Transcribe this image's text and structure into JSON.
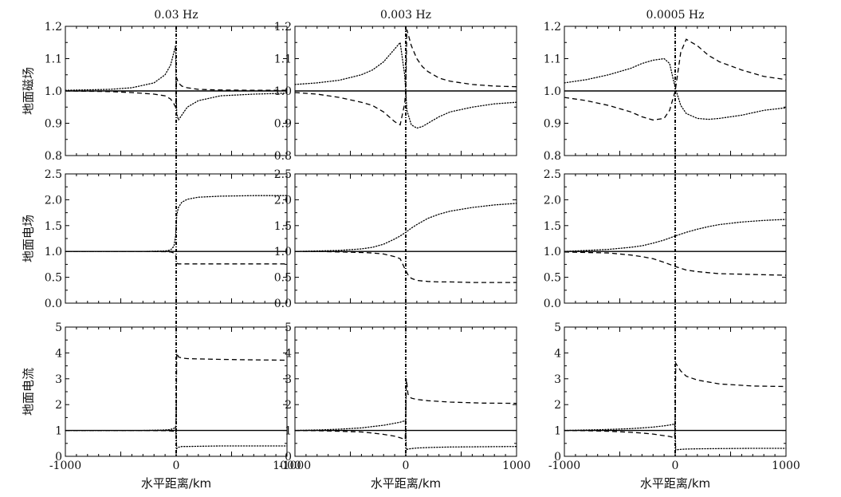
{
  "chart_data": {
    "type": "line",
    "layout": "3x3 grid of line panels",
    "columns": [
      "0.03 Hz",
      "0.003 Hz",
      "0.0005 Hz"
    ],
    "rows": [
      "地面磁场",
      "地面电场",
      "地面电流"
    ],
    "xlabel": "水平距离/km",
    "xlim": [
      -1000,
      1000
    ],
    "xticks": [
      -1000,
      0,
      1000
    ],
    "row_axes": [
      {
        "ylim": [
          0.8,
          1.2
        ],
        "yticks": [
          "0.8",
          "0.9",
          "1.0",
          "1.1",
          "1.2"
        ]
      },
      {
        "ylim": [
          0.0,
          2.5
        ],
        "yticks": [
          "0.0",
          "0.5",
          "1.0",
          "1.5",
          "2.0",
          "2.5"
        ]
      },
      {
        "ylim": [
          0,
          5
        ],
        "yticks": [
          "0",
          "1",
          "2",
          "3",
          "4",
          "5"
        ]
      }
    ],
    "line_styles": {
      "reference": "solid",
      "dotted_curve": "dotted",
      "dashed_curve": "dashed"
    },
    "panels": [
      {
        "row": 0,
        "col": 0,
        "reference": 1.0,
        "dotted": {
          "x": [
            -1000,
            -600,
            -400,
            -200,
            -100,
            -50,
            -20,
            -5,
            0,
            5,
            20,
            50,
            100,
            200,
            400,
            700,
            1000
          ],
          "y": [
            1.002,
            1.005,
            1.01,
            1.025,
            1.05,
            1.08,
            1.12,
            1.14,
            1.0,
            0.93,
            0.91,
            0.925,
            0.95,
            0.97,
            0.985,
            0.99,
            0.993
          ]
        },
        "dashed": {
          "x": [
            -1000,
            -600,
            -400,
            -200,
            -100,
            -50,
            -20,
            -5,
            0,
            5,
            20,
            50,
            100,
            200,
            400,
            700,
            1000
          ],
          "y": [
            1.0,
            0.998,
            0.995,
            0.99,
            0.985,
            0.975,
            0.96,
            0.95,
            1.0,
            1.04,
            1.025,
            1.015,
            1.01,
            1.005,
            1.003,
            1.002,
            1.002
          ]
        }
      },
      {
        "row": 0,
        "col": 1,
        "reference": 1.0,
        "dotted": {
          "x": [
            -1000,
            -800,
            -600,
            -400,
            -300,
            -200,
            -100,
            -50,
            -10,
            0,
            10,
            50,
            100,
            150,
            200,
            300,
            400,
            600,
            800,
            1000
          ],
          "y": [
            1.02,
            1.025,
            1.033,
            1.05,
            1.065,
            1.09,
            1.13,
            1.15,
            1.05,
            1.0,
            0.94,
            0.895,
            0.885,
            0.89,
            0.9,
            0.92,
            0.935,
            0.95,
            0.96,
            0.965
          ]
        },
        "dashed": {
          "x": [
            -1000,
            -800,
            -600,
            -400,
            -300,
            -200,
            -100,
            -50,
            -10,
            0,
            10,
            50,
            100,
            150,
            200,
            300,
            400,
            600,
            800,
            1000
          ],
          "y": [
            0.995,
            0.99,
            0.98,
            0.965,
            0.955,
            0.935,
            0.905,
            0.895,
            0.96,
            1.0,
            1.19,
            1.14,
            1.1,
            1.075,
            1.06,
            1.04,
            1.03,
            1.02,
            1.015,
            1.013
          ]
        }
      },
      {
        "row": 0,
        "col": 2,
        "reference": 1.0,
        "dotted": {
          "x": [
            -1000,
            -800,
            -600,
            -400,
            -300,
            -200,
            -100,
            -50,
            0,
            50,
            100,
            200,
            300,
            400,
            600,
            800,
            1000
          ],
          "y": [
            1.025,
            1.035,
            1.05,
            1.07,
            1.085,
            1.095,
            1.1,
            1.085,
            1.01,
            0.955,
            0.93,
            0.915,
            0.912,
            0.915,
            0.925,
            0.94,
            0.948
          ]
        },
        "dashed": {
          "x": [
            -1000,
            -800,
            -600,
            -400,
            -300,
            -200,
            -100,
            -50,
            0,
            50,
            100,
            200,
            300,
            400,
            600,
            800,
            1000
          ],
          "y": [
            0.98,
            0.97,
            0.955,
            0.935,
            0.92,
            0.91,
            0.915,
            0.94,
            1.0,
            1.12,
            1.16,
            1.14,
            1.11,
            1.09,
            1.065,
            1.045,
            1.035
          ]
        }
      },
      {
        "row": 1,
        "col": 0,
        "reference": 1.0,
        "dotted": {
          "x": [
            -1000,
            -600,
            -300,
            -100,
            -50,
            -20,
            -5,
            0,
            5,
            20,
            50,
            100,
            200,
            400,
            700,
            1000
          ],
          "y": [
            1.0,
            1.0,
            1.0,
            1.01,
            1.03,
            1.1,
            1.3,
            1.5,
            1.7,
            1.85,
            1.95,
            2.01,
            2.05,
            2.07,
            2.08,
            2.08
          ]
        },
        "dashed": {
          "x": [
            -1000,
            -600,
            -300,
            -100,
            -50,
            -20,
            -5,
            0,
            5,
            20,
            50,
            100,
            200,
            400,
            700,
            1000
          ],
          "y": [
            1.0,
            1.0,
            1.0,
            0.995,
            0.99,
            0.97,
            0.92,
            0.85,
            0.77,
            0.76,
            0.76,
            0.76,
            0.76,
            0.76,
            0.76,
            0.76
          ]
        }
      },
      {
        "row": 1,
        "col": 1,
        "reference": 1.0,
        "dotted": {
          "x": [
            -1000,
            -800,
            -600,
            -400,
            -300,
            -200,
            -100,
            -50,
            0,
            50,
            100,
            200,
            300,
            400,
            600,
            800,
            1000
          ],
          "y": [
            1.0,
            1.01,
            1.02,
            1.05,
            1.08,
            1.14,
            1.24,
            1.3,
            1.37,
            1.45,
            1.52,
            1.64,
            1.72,
            1.78,
            1.85,
            1.9,
            1.93
          ]
        },
        "dashed": {
          "x": [
            -1000,
            -800,
            -600,
            -400,
            -300,
            -200,
            -100,
            -50,
            0,
            20,
            50,
            100,
            200,
            300,
            400,
            600,
            800,
            1000
          ],
          "y": [
            1.0,
            1.0,
            0.99,
            0.98,
            0.97,
            0.95,
            0.9,
            0.86,
            0.63,
            0.55,
            0.48,
            0.44,
            0.42,
            0.41,
            0.41,
            0.4,
            0.4,
            0.4
          ]
        }
      },
      {
        "row": 1,
        "col": 2,
        "reference": 1.0,
        "dotted": {
          "x": [
            -1000,
            -800,
            -600,
            -400,
            -300,
            -200,
            -100,
            0,
            100,
            200,
            300,
            400,
            600,
            800,
            1000
          ],
          "y": [
            1.0,
            1.02,
            1.04,
            1.08,
            1.11,
            1.16,
            1.22,
            1.3,
            1.37,
            1.43,
            1.48,
            1.52,
            1.57,
            1.6,
            1.62
          ]
        },
        "dashed": {
          "x": [
            -1000,
            -800,
            -600,
            -400,
            -300,
            -200,
            -100,
            0,
            100,
            200,
            300,
            400,
            600,
            800,
            1000
          ],
          "y": [
            0.99,
            0.98,
            0.97,
            0.93,
            0.9,
            0.86,
            0.79,
            0.71,
            0.64,
            0.61,
            0.59,
            0.57,
            0.56,
            0.55,
            0.54
          ]
        }
      },
      {
        "row": 2,
        "col": 0,
        "reference": 1.0,
        "dotted": {
          "x": [
            -1000,
            -600,
            -300,
            -100,
            -50,
            -20,
            -5,
            0,
            5,
            20,
            50,
            100,
            200,
            400,
            700,
            1000
          ],
          "y": [
            1.0,
            1.0,
            1.0,
            1.02,
            1.04,
            1.08,
            1.15,
            0.8,
            0.3,
            0.35,
            0.38,
            0.38,
            0.39,
            0.4,
            0.4,
            0.4
          ]
        },
        "dashed": {
          "x": [
            -1000,
            -600,
            -300,
            -100,
            -50,
            -20,
            -5,
            0,
            5,
            20,
            50,
            100,
            200,
            400,
            700,
            1000
          ],
          "y": [
            1.0,
            1.0,
            1.0,
            0.99,
            0.98,
            0.97,
            0.95,
            1.5,
            4.0,
            3.85,
            3.8,
            3.78,
            3.77,
            3.75,
            3.73,
            3.72
          ]
        }
      },
      {
        "row": 2,
        "col": 1,
        "reference": 1.0,
        "dotted": {
          "x": [
            -1000,
            -800,
            -600,
            -400,
            -300,
            -200,
            -100,
            -50,
            -5,
            0,
            5,
            20,
            50,
            100,
            200,
            400,
            700,
            1000
          ],
          "y": [
            1.0,
            1.02,
            1.05,
            1.1,
            1.15,
            1.2,
            1.28,
            1.32,
            1.38,
            1.0,
            0.25,
            0.28,
            0.3,
            0.32,
            0.34,
            0.36,
            0.37,
            0.38
          ]
        },
        "dashed": {
          "x": [
            -1000,
            -800,
            -600,
            -400,
            -300,
            -200,
            -100,
            -50,
            -5,
            0,
            5,
            20,
            50,
            100,
            200,
            400,
            700,
            1000
          ],
          "y": [
            1.0,
            0.99,
            0.97,
            0.94,
            0.9,
            0.85,
            0.78,
            0.72,
            0.65,
            1.5,
            3.0,
            2.4,
            2.25,
            2.2,
            2.15,
            2.1,
            2.06,
            2.05
          ]
        }
      },
      {
        "row": 2,
        "col": 2,
        "reference": 1.0,
        "dotted": {
          "x": [
            -1000,
            -800,
            -600,
            -400,
            -300,
            -200,
            -100,
            -50,
            -5,
            0,
            5,
            50,
            100,
            200,
            400,
            700,
            1000
          ],
          "y": [
            1.0,
            1.02,
            1.04,
            1.07,
            1.1,
            1.13,
            1.18,
            1.21,
            1.25,
            1.0,
            0.25,
            0.27,
            0.28,
            0.29,
            0.3,
            0.31,
            0.31
          ]
        },
        "dashed": {
          "x": [
            -1000,
            -800,
            -600,
            -400,
            -300,
            -200,
            -100,
            -50,
            -5,
            0,
            5,
            50,
            100,
            200,
            400,
            700,
            1000
          ],
          "y": [
            1.0,
            0.99,
            0.97,
            0.93,
            0.9,
            0.86,
            0.8,
            0.77,
            0.72,
            1.5,
            3.6,
            3.3,
            3.1,
            2.95,
            2.8,
            2.72,
            2.7
          ]
        }
      }
    ]
  }
}
